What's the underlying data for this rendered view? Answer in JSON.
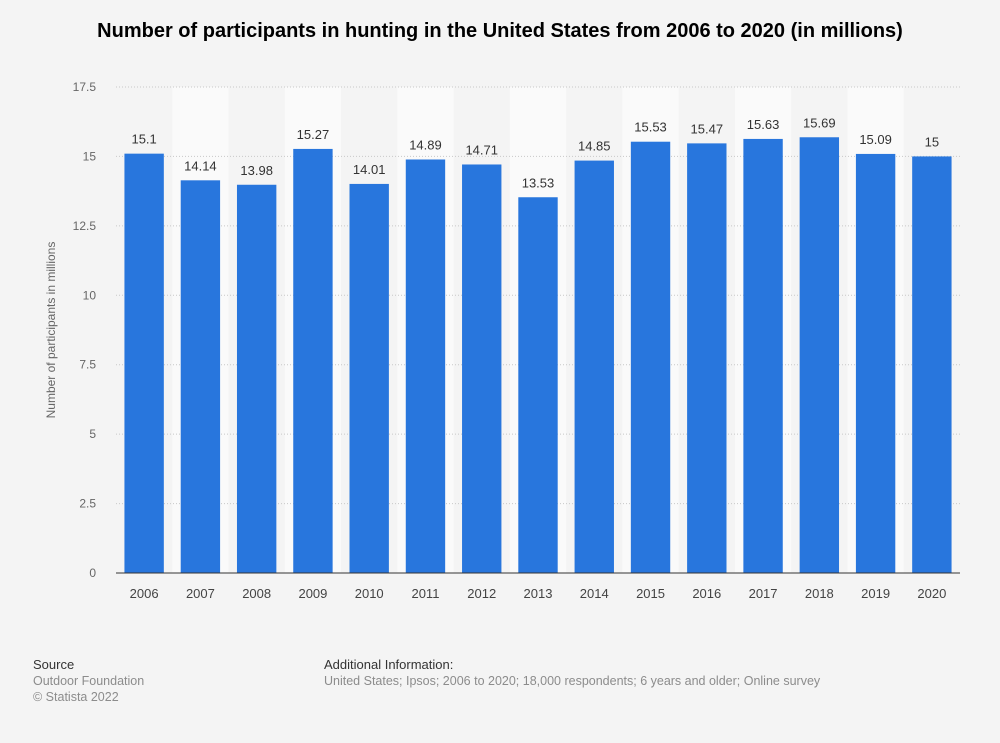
{
  "title": "Number of participants in hunting in the United States from 2006 to 2020 (in millions)",
  "chart_data": {
    "type": "bar",
    "title": "Number of participants in hunting in the United States from 2006 to 2020 (in millions)",
    "xlabel": "",
    "ylabel": "Number of participants in millions",
    "categories": [
      "2006",
      "2007",
      "2008",
      "2009",
      "2010",
      "2011",
      "2012",
      "2013",
      "2014",
      "2015",
      "2016",
      "2017",
      "2018",
      "2019",
      "2020"
    ],
    "values": [
      15.1,
      14.14,
      13.98,
      15.27,
      14.01,
      14.89,
      14.71,
      13.53,
      14.85,
      15.53,
      15.47,
      15.63,
      15.69,
      15.09,
      15
    ],
    "value_labels": [
      "15.1",
      "14.14",
      "13.98",
      "15.27",
      "14.01",
      "14.89",
      "14.71",
      "13.53",
      "14.85",
      "15.53",
      "15.47",
      "15.63",
      "15.69",
      "15.09",
      "15"
    ],
    "ylim": [
      0,
      17.5
    ],
    "yticks": [
      0,
      2.5,
      5,
      7.5,
      10,
      12.5,
      15,
      17.5
    ],
    "ytick_labels": [
      "0",
      "2.5",
      "5",
      "7.5",
      "10",
      "12.5",
      "15",
      "17.5"
    ],
    "grid": true,
    "bar_color": "#2876dd"
  },
  "footer": {
    "source_heading": "Source",
    "source_lines": [
      "Outdoor Foundation",
      "© Statista 2022"
    ],
    "additional_heading": "Additional Information:",
    "additional_text": "United States; Ipsos; 2006 to 2020; 18,000 respondents; 6 years and older; Online survey"
  }
}
